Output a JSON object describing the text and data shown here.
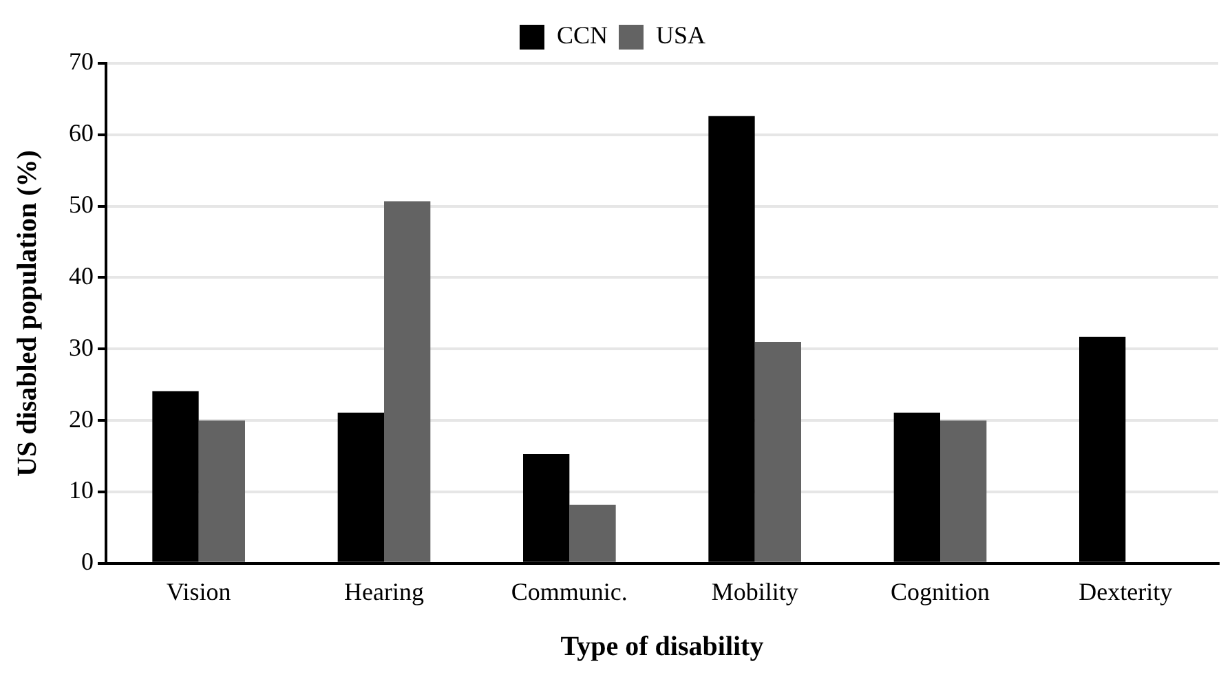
{
  "chart_data": {
    "type": "bar",
    "xlabel": "Type of disability",
    "ylabel": "US disabled population (%)",
    "categories": [
      "Vision",
      "Hearing",
      "Communic.",
      "Mobility",
      "Cognition",
      "Dexterity"
    ],
    "series": [
      {
        "name": "CCN",
        "color": "#000000",
        "values": [
          24.1,
          21.1,
          15.3,
          62.6,
          21.1,
          31.7
        ]
      },
      {
        "name": "USA",
        "color": "#636363",
        "values": [
          20.0,
          50.7,
          8.2,
          31.0,
          20.0,
          null
        ]
      }
    ],
    "ylim": [
      0,
      70
    ],
    "yticks": [
      0,
      10,
      20,
      30,
      40,
      50,
      60,
      70
    ],
    "grid": "y",
    "legend": "top"
  }
}
